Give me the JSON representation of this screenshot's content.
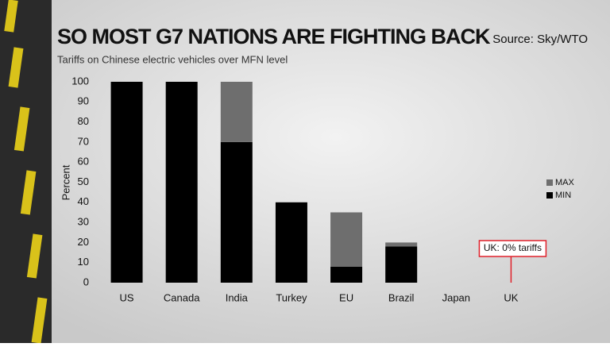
{
  "chart_data": {
    "type": "stacked_bar",
    "title": "SO MOST G7 NATIONS ARE FIGHTING BACK",
    "subtitle": "Tariffs on Chinese electric vehicles over MFN level",
    "source": "Source: Sky/WTO",
    "y_label": "Percent",
    "categories": [
      "US",
      "Canada",
      "India",
      "Turkey",
      "EU",
      "Brazil",
      "Japan",
      "UK"
    ],
    "series": [
      {
        "name": "MIN",
        "color": "#000000",
        "values": [
          100,
          100,
          70,
          40,
          8,
          18,
          0,
          0
        ]
      },
      {
        "name": "MAX",
        "color": "#6e6e6e",
        "values": [
          0,
          0,
          30,
          0,
          27,
          2,
          0,
          0
        ]
      }
    ],
    "ylim": [
      0,
      100
    ],
    "yticks": [
      0,
      10,
      20,
      30,
      40,
      50,
      60,
      70,
      80,
      90,
      100
    ],
    "legend": "right",
    "annotation": {
      "text": "UK: 0% tariffs",
      "category": 7,
      "color": "#e0202a"
    }
  }
}
